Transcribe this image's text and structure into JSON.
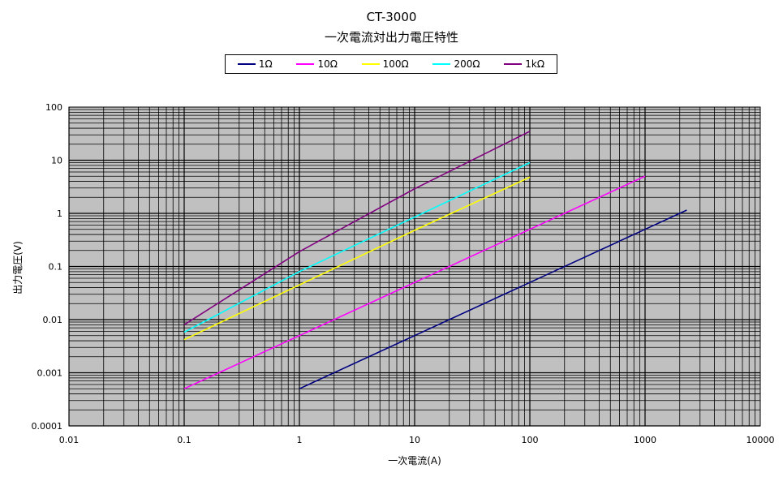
{
  "chart_data": {
    "type": "line",
    "title": "CT-3000",
    "subtitle": "一次電流対出力電圧特性",
    "xlabel": "一次電流(A)",
    "ylabel": "出力電圧(V)",
    "xscale": "log",
    "yscale": "log",
    "xlim": [
      0.01,
      10000
    ],
    "ylim": [
      0.0001,
      100
    ],
    "x_ticks": [
      "0.01",
      "0.1",
      "1",
      "10",
      "100",
      "1000",
      "10000"
    ],
    "y_ticks": [
      "0.0001",
      "0.001",
      "0.01",
      "0.1",
      "1",
      "10",
      "100"
    ],
    "grid": true,
    "plot_background": "#c0c0c0",
    "legend_position": "top",
    "series": [
      {
        "name": "1Ω",
        "color": "#000080",
        "x": [
          1,
          10,
          100,
          1000,
          2300
        ],
        "y": [
          0.0005,
          0.005,
          0.05,
          0.5,
          1.15
        ]
      },
      {
        "name": "10Ω",
        "color": "#ff00ff",
        "x": [
          0.1,
          1,
          10,
          100,
          1000
        ],
        "y": [
          0.0005,
          0.005,
          0.05,
          0.5,
          5
        ]
      },
      {
        "name": "100Ω",
        "color": "#ffff00",
        "x": [
          0.1,
          1,
          10,
          100
        ],
        "y": [
          0.0042,
          0.045,
          0.48,
          4.8
        ]
      },
      {
        "name": "200Ω",
        "color": "#00ffff",
        "x": [
          0.1,
          1,
          10,
          100
        ],
        "y": [
          0.0058,
          0.08,
          0.85,
          9
        ]
      },
      {
        "name": "1kΩ",
        "color": "#800080",
        "x": [
          0.1,
          1,
          10,
          100
        ],
        "y": [
          0.008,
          0.19,
          2.9,
          35
        ]
      }
    ]
  }
}
